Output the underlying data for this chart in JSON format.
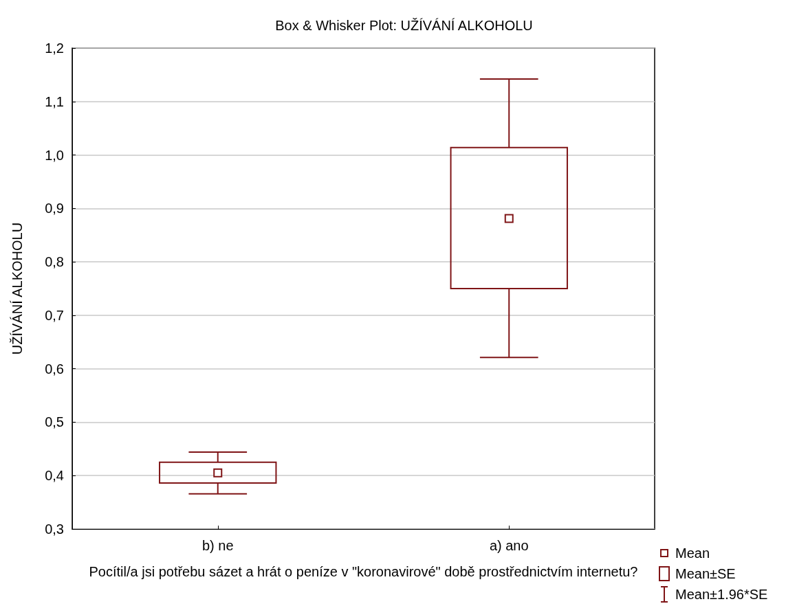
{
  "chart_data": {
    "type": "box",
    "title": "Box & Whisker Plot: UŽÍVÁNÍ ALKOHOLU",
    "xlabel": "Pocítil/a jsi potřebu sázet a hrát o peníze v \"koronavirové\" době prostřednictvím internetu?",
    "ylabel": "UŽÍVÁNÍ ALKOHOLU",
    "categories": [
      "b) ne",
      "a) ano"
    ],
    "boxes": [
      {
        "low": 0.366,
        "q1": 0.386,
        "median": 0.405,
        "q3": 0.425,
        "high": 0.444
      },
      {
        "low": 0.621,
        "q1": 0.75,
        "median": 0.881,
        "q3": 1.014,
        "high": 1.142
      }
    ],
    "color": "#7f1416",
    "ylim": [
      0.3,
      1.2
    ],
    "yticks": [
      {
        "value": 0.3,
        "label": "0,3"
      },
      {
        "value": 0.4,
        "label": "0,4"
      },
      {
        "value": 0.5,
        "label": "0,5"
      },
      {
        "value": 0.6,
        "label": "0,6"
      },
      {
        "value": 0.7,
        "label": "0,7"
      },
      {
        "value": 0.8,
        "label": "0,8"
      },
      {
        "value": 0.9,
        "label": "0,9"
      },
      {
        "value": 1.0,
        "label": "1,0"
      },
      {
        "value": 1.1,
        "label": "1,1"
      },
      {
        "value": 1.2,
        "label": "1,2"
      }
    ],
    "grid": "y",
    "annotations": [
      "Mean",
      "Mean±SE",
      "Mean±1.96*SE"
    ]
  }
}
